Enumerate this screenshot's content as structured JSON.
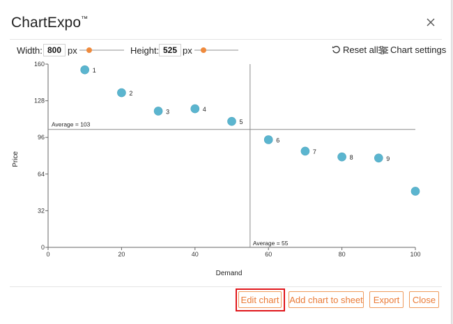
{
  "dialog": {
    "title": "ChartExpo",
    "title_mark": "™",
    "close_icon": "close-icon"
  },
  "toolbar": {
    "width_label": "Width:",
    "width_value": "800",
    "width_unit": "px",
    "width_slider_level": 0.22,
    "height_label": "Height:",
    "height_value": "525",
    "height_unit": "px",
    "height_slider_level": 0.2,
    "reset_label": "Reset all",
    "reset_icon": "reset-icon",
    "settings_label": "Chart settings",
    "settings_icon": "settings-sliders-icon",
    "accent_color": "#ef8a3c"
  },
  "chart_data": {
    "type": "scatter",
    "xlabel": "Demand",
    "ylabel": "Price",
    "xlim": [
      0,
      100
    ],
    "ylim": [
      0,
      160
    ],
    "xticks": [
      0,
      20,
      40,
      60,
      80,
      100
    ],
    "yticks": [
      0,
      32,
      64,
      96,
      128,
      160
    ],
    "grid": false,
    "point_color": "#5bb5cf",
    "points": [
      {
        "label": "1",
        "x": 10,
        "y": 155
      },
      {
        "label": "2",
        "x": 20,
        "y": 135
      },
      {
        "label": "3",
        "x": 30,
        "y": 119
      },
      {
        "label": "4",
        "x": 40,
        "y": 121
      },
      {
        "label": "5",
        "x": 50,
        "y": 110
      },
      {
        "label": "6",
        "x": 60,
        "y": 94
      },
      {
        "label": "7",
        "x": 70,
        "y": 84
      },
      {
        "label": "8",
        "x": 80,
        "y": 79
      },
      {
        "label": "9",
        "x": 90,
        "y": 78
      },
      {
        "label": "",
        "x": 100,
        "y": 49
      }
    ],
    "reference_lines": [
      {
        "axis": "y",
        "value": 103,
        "label": "Average = 103"
      },
      {
        "axis": "x",
        "value": 55,
        "label": "Average = 55"
      }
    ]
  },
  "actions": {
    "edit_chart": "Edit chart",
    "add_to_sheet": "Add chart to sheet",
    "export": "Export",
    "close": "Close",
    "button_color": "#ea7a35",
    "highlight_color": "#e0161b"
  }
}
